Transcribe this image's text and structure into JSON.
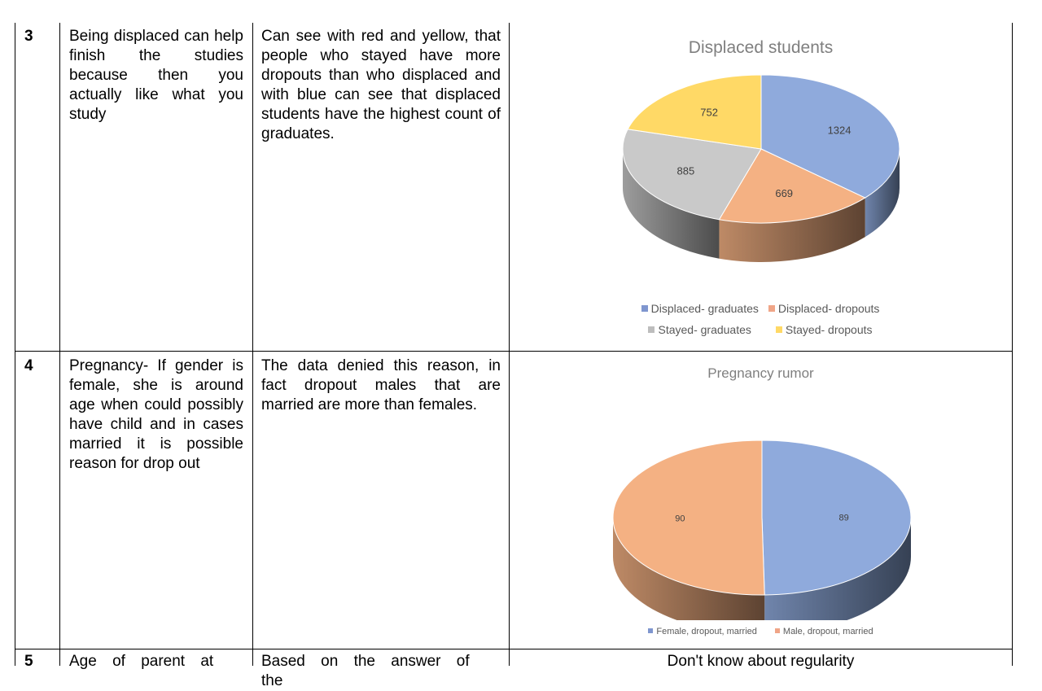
{
  "rows": [
    {
      "number": "3",
      "reason": "Being displaced can help finish the studies because then you actually like what you study",
      "finding": "Can see with red and yellow, that people who stayed have more dropouts than who displaced and with blue can see that displaced students have the highest count of graduates."
    },
    {
      "number": "4",
      "reason": "Pregnancy- If gender is female, she is around age when could possibly have child and in cases married it is possible reason for drop out",
      "finding": "The data denied this reason, in fact dropout males that are married are more than females."
    },
    {
      "number": "5",
      "reason": "Age of parent at",
      "finding": "Based on the answer of the",
      "conclusion_partial": "Don't know about regularity"
    }
  ],
  "chart_data": [
    {
      "type": "pie",
      "title": "Displaced students",
      "categories": [
        "Displaced- graduates",
        "Displaced- dropouts",
        "Stayed- graduates",
        "Stayed- dropouts"
      ],
      "values": [
        1324,
        669,
        885,
        752
      ],
      "value_labels": [
        "1324",
        "669",
        "885",
        "752"
      ],
      "colors": [
        "#8faadc",
        "#f4b183",
        "#c9c9c9",
        "#ffd966"
      ],
      "legend_position": "bottom",
      "style": "3d"
    },
    {
      "type": "pie",
      "title": "Pregnancy rumor",
      "categories": [
        "Female, dropout, married",
        "Male, dropout, married"
      ],
      "values": [
        89,
        90
      ],
      "value_labels": [
        "89",
        "90"
      ],
      "colors": [
        "#8faadc",
        "#f4b183"
      ],
      "legend_position": "bottom",
      "style": "3d"
    }
  ]
}
